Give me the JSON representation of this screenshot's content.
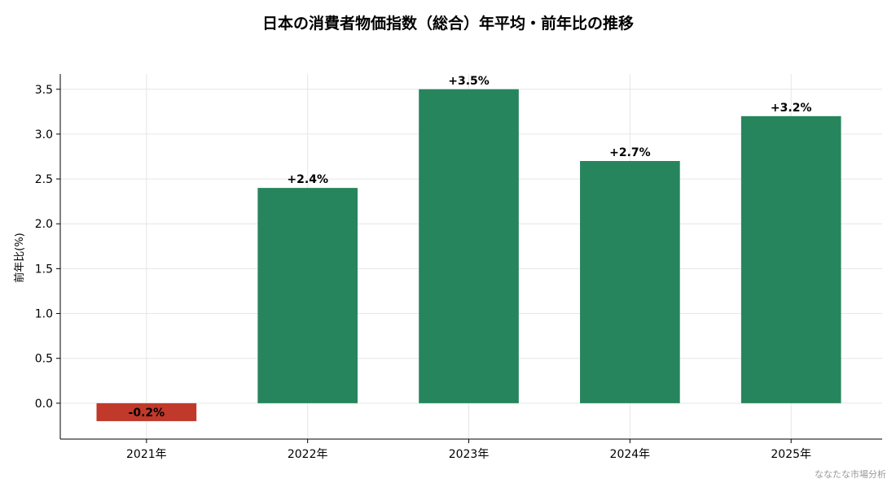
{
  "chart_data": {
    "type": "bar",
    "title": "日本の消費者物価指数（総合）年平均・前年比の推移",
    "xlabel": "",
    "ylabel": "前年比(%)",
    "categories": [
      "2021年",
      "2022年",
      "2023年",
      "2024年",
      "2025年"
    ],
    "values": [
      -0.2,
      2.4,
      3.5,
      2.7,
      3.2
    ],
    "data_labels": [
      "-0.2%",
      "+2.4%",
      "+3.5%",
      "+2.7%",
      "+3.2%"
    ],
    "ylim": [
      -0.4,
      3.67
    ],
    "yticks": [
      0.0,
      0.5,
      1.0,
      1.5,
      2.0,
      2.5,
      3.0,
      3.5
    ],
    "ytick_labels": [
      "0.0",
      "0.5",
      "1.0",
      "1.5",
      "2.0",
      "2.5",
      "3.0",
      "3.5"
    ],
    "grid": true,
    "legend": "none",
    "colors": {
      "positive": "#27855e",
      "negative": "#c0392b"
    }
  },
  "watermark": "ななたな市場分析"
}
